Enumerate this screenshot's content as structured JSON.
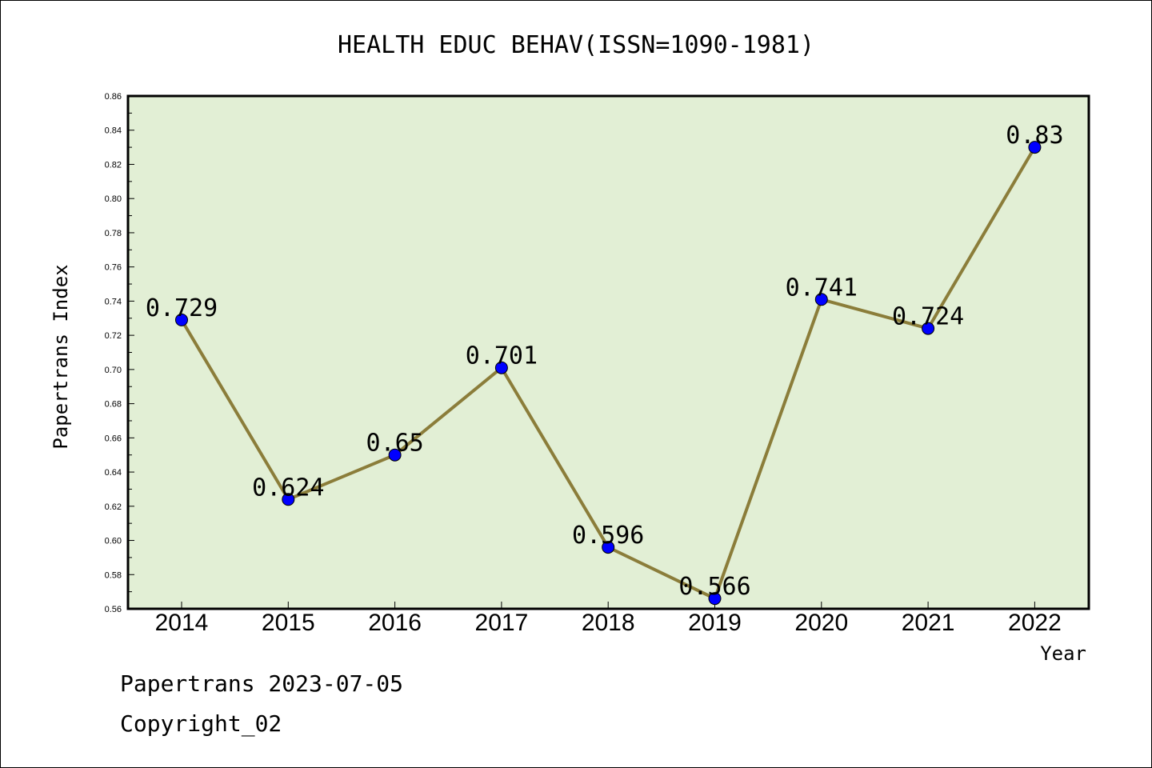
{
  "chart_data": {
    "type": "line",
    "title": "HEALTH EDUC BEHAV(ISSN=1090-1981)",
    "xlabel": "Year",
    "ylabel": "Papertrans Index",
    "categories": [
      "2014",
      "2015",
      "2016",
      "2017",
      "2018",
      "2019",
      "2020",
      "2021",
      "2022"
    ],
    "values": [
      0.729,
      0.624,
      0.65,
      0.701,
      0.596,
      0.566,
      0.741,
      0.724,
      0.83
    ],
    "data_labels": [
      "0.729",
      "0.624",
      "0.65",
      "0.701",
      "0.596",
      "0.566",
      "0.741",
      "0.724",
      "0.83"
    ],
    "ylim": [
      0.56,
      0.86
    ],
    "yticks": [
      "0.56",
      "0.58",
      "0.60",
      "0.62",
      "0.64",
      "0.66",
      "0.68",
      "0.70",
      "0.72",
      "0.74",
      "0.76",
      "0.78",
      "0.80",
      "0.82",
      "0.84",
      "0.86"
    ],
    "grid": false,
    "colors": {
      "plot_background": "#e2efd5",
      "line": "#8b7d3a",
      "marker": "#0000ff"
    }
  },
  "footer": {
    "line1": "Papertrans 2023-07-05",
    "line2": "Copyright_02"
  }
}
